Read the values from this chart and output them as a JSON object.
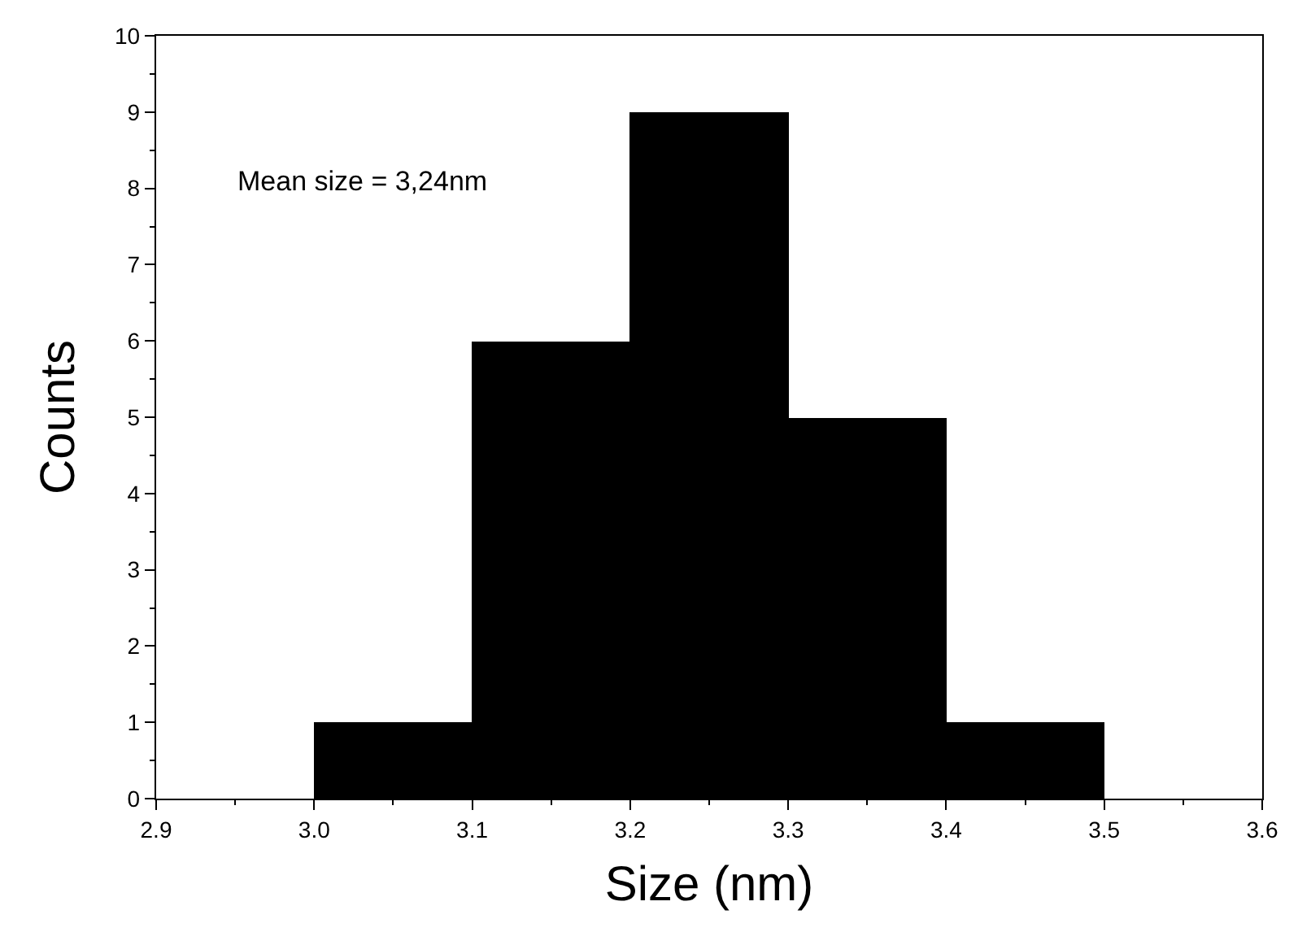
{
  "chart_data": {
    "type": "histogram",
    "xlabel": "Size (nm)",
    "ylabel": "Counts",
    "bins": [
      3.0,
      3.1,
      3.2,
      3.3,
      3.4,
      3.5
    ],
    "values": [
      1,
      6,
      9,
      5,
      1
    ],
    "color": "#000000",
    "xlim": [
      2.9,
      3.6
    ],
    "xticks": [
      2.9,
      {
        "value": 3,
        "label": "3.0"
      },
      3.1,
      3.2,
      3.3,
      3.4,
      3.5,
      3.6
    ],
    "ylim": [
      0,
      10
    ],
    "yticks": [
      0,
      1,
      2,
      3,
      4,
      5,
      6,
      7,
      8,
      9,
      10
    ],
    "annotations": [
      "Mean size = 3,24nm"
    ]
  }
}
